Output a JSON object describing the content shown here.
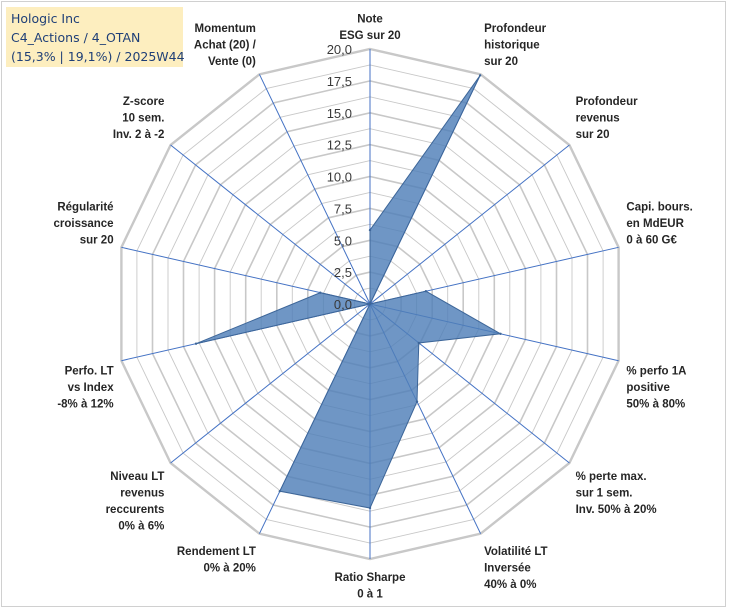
{
  "header": {
    "line1": "Hologic Inc",
    "line2": "C4_Actions / 4_OTAN",
    "line3": "(15,3% | 19,1%) / 2025W44"
  },
  "chart_data": {
    "type": "radar",
    "title": "Hologic Inc",
    "rmin": 0,
    "rmax": 20,
    "ticks": [
      "0,0",
      "2,5",
      "5,0",
      "7,5",
      "10,0",
      "12,5",
      "15,0",
      "17,5",
      "20,0"
    ],
    "tick_values": [
      0,
      2.5,
      5,
      7.5,
      10,
      12.5,
      15,
      17.5,
      20
    ],
    "grid": "on",
    "fill_color": "#4f7fb8",
    "grid_color": "#c8c8c8",
    "axis_color": "#4472c4",
    "axes": [
      {
        "label": [
          "Note",
          "ESG sur 20"
        ],
        "value": 5.8
      },
      {
        "label": [
          "Profondeur",
          "historique",
          "sur 20"
        ],
        "value": 19.9
      },
      {
        "label": [
          "Profondeur",
          "revenus",
          "sur 20"
        ],
        "value": 0.0
      },
      {
        "label": [
          "Capi. bours.",
          "en MdEUR",
          "0 à 60 G€"
        ],
        "value": 4.5
      },
      {
        "label": [
          "% perfo 1A",
          "positive",
          "50% à 80%"
        ],
        "value": 10.5
      },
      {
        "label": [
          "% perte max.",
          "sur 1 sem.",
          "Inv. 50% à 20%"
        ],
        "value": 4.9
      },
      {
        "label": [
          "Volatilité LT",
          "Inversée",
          "40% à 0%"
        ],
        "value": 8.5
      },
      {
        "label": [
          "Ratio Sharpe",
          "0 à 1"
        ],
        "value": 16.0
      },
      {
        "label": [
          "Rendement LT",
          "0% à 20%"
        ],
        "value": 16.3
      },
      {
        "label": [
          "Niveau LT",
          "revenus",
          "reccurents",
          "0% à 6%"
        ],
        "value": 0.0
      },
      {
        "label": [
          "Perfo. LT",
          "vs Index",
          "-8% à 12%"
        ],
        "value": 14.0
      },
      {
        "label": [
          "Régularité",
          "croissance",
          "sur 20"
        ],
        "value": 4.0
      },
      {
        "label": [
          "Z-score",
          "10 sem.",
          "Inv. 2 à -2"
        ],
        "value": 0.0
      },
      {
        "label": [
          "Momentum",
          "Achat (20) /",
          "Vente (0)"
        ],
        "value": 0.0
      }
    ]
  }
}
